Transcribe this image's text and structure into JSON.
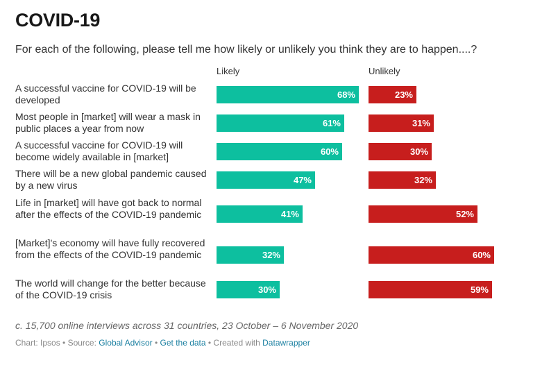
{
  "title": "COVID-19",
  "subtitle": "For each of the following, please tell me how likely or unlikely you think they are to happen....?",
  "chart_data": {
    "type": "bar",
    "orientation": "horizontal",
    "title": "COVID-19",
    "categories": [
      "A successful vaccine for COVID-19 will be developed",
      "Most people in [market] will wear a mask in public places a year from now",
      "A successful vaccine for COVID-19 will become widely available in [market]",
      "There will be a new global pandemic caused by a new virus",
      "Life in [market] will have got back to normal after the effects of the COVID-19 pandemic",
      "[Market]'s economy will have fully recovered from the effects of the COVID-19 pandemic",
      "The world will change for the better because of the COVID-19 crisis"
    ],
    "series": [
      {
        "name": "Likely",
        "color": "#0dbf9f",
        "values": [
          68,
          61,
          60,
          47,
          41,
          32,
          30
        ],
        "labels": [
          "68%",
          "61%",
          "60%",
          "47%",
          "41%",
          "32%",
          "30%"
        ]
      },
      {
        "name": "Unlikely",
        "color": "#c71e1d",
        "values": [
          23,
          31,
          30,
          32,
          52,
          60,
          59
        ],
        "labels": [
          "23%",
          "31%",
          "30%",
          "32%",
          "52%",
          "60%",
          "59%"
        ]
      }
    ],
    "xlim": [
      0,
      100
    ],
    "unit": "%"
  },
  "notes": "c. 15,700 online interviews across 31 countries, 23 October – 6 November 2020",
  "footer": {
    "chart_by": "Chart: Ipsos",
    "sep1": " • Source: ",
    "source_link": "Global Advisor",
    "sep2": " • ",
    "data_link": "Get the data",
    "sep3": " • Created with ",
    "tool_link": "Datawrapper"
  }
}
